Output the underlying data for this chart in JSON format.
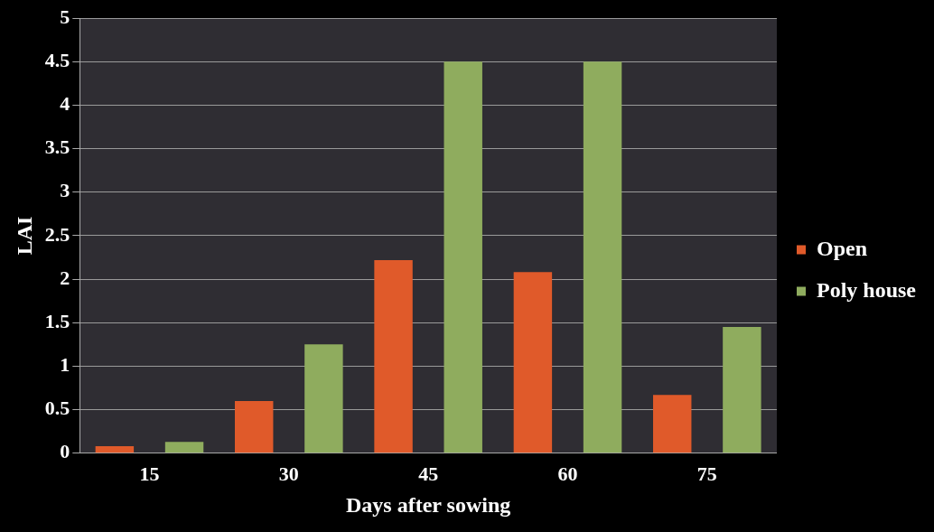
{
  "chart_data": {
    "type": "bar",
    "xlabel": "Days after sowing",
    "ylabel": "LAI",
    "categories": [
      "15",
      "30",
      "45",
      "60",
      "75"
    ],
    "series": [
      {
        "name": "Open",
        "color": "#e05a2a",
        "values": [
          0.08,
          0.6,
          2.22,
          2.08,
          0.67
        ]
      },
      {
        "name": "Poly house",
        "color": "#8fac5e",
        "values": [
          0.13,
          1.25,
          4.5,
          4.5,
          1.45
        ]
      }
    ],
    "ylim": [
      0,
      5
    ],
    "yticks": [
      0,
      0.5,
      1,
      1.5,
      2,
      2.5,
      3,
      3.5,
      4,
      4.5,
      5
    ],
    "grid": "y",
    "legend": "right"
  }
}
